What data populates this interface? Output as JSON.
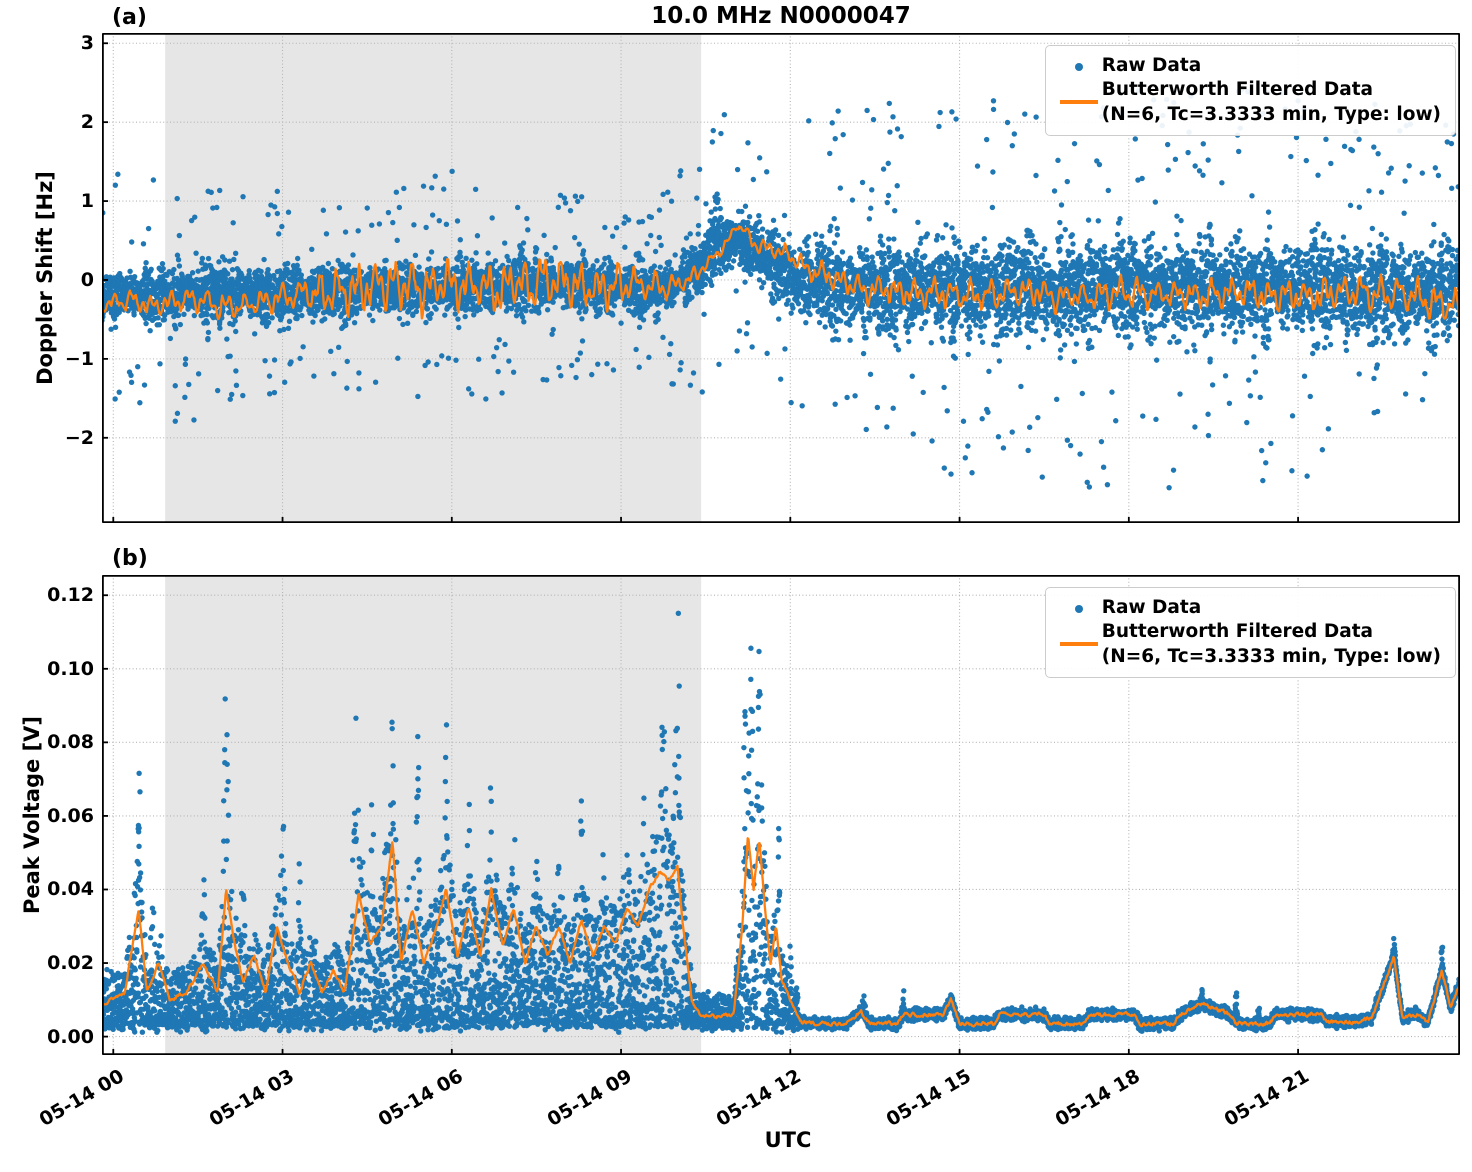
{
  "figure": {
    "title": "10.0 MHz N0000047",
    "panel_a_label": "(a)",
    "panel_b_label": "(b)",
    "xlabel": "UTC"
  },
  "legend": {
    "raw_label": "Raw Data",
    "filtered_label_line1": "Butterworth Filtered Data",
    "filtered_label_line2": "(N=6, Tc=3.3333 min, Type: low)"
  },
  "colors": {
    "raw": "#1f77b4",
    "filtered": "#ff7f0e",
    "shading": "#e6e6e6",
    "grid": "#b3b3b3",
    "spine": "#000000"
  },
  "chart_data": [
    {
      "type": "scatter",
      "panel": "a",
      "title": "10.0 MHz N0000047",
      "ylabel": "Doppler Shift [Hz]",
      "xlabel": "",
      "ylim": [
        -3.08,
        3.13
      ],
      "yticks": [
        3,
        2,
        1,
        0,
        -1,
        -2
      ],
      "ytick_labels": [
        "3",
        "2",
        "1",
        "0",
        "−1",
        "−2"
      ],
      "xlim_hours": [
        -0.2,
        23.87
      ],
      "xtick_hours": [
        0,
        3,
        6,
        9,
        12,
        15,
        18,
        21
      ],
      "xtick_labels": [
        "05-14 00",
        "05-14 03",
        "05-14 06",
        "05-14 09",
        "05-14 12",
        "05-14 15",
        "05-14 18",
        "05-14 21"
      ],
      "grid": true,
      "legend_position": "upper right",
      "shaded_region_hours": [
        0.92,
        10.42
      ],
      "series": [
        {
          "name": "Raw Data",
          "kind": "scatter",
          "n_points": 9500,
          "outlier_fraction": 0.05,
          "envelope_keyframes": [
            [
              -0.2,
              -0.2,
              0.52,
              1.6
            ],
            [
              1.0,
              -0.2,
              0.56,
              1.7
            ],
            [
              2.0,
              -0.15,
              0.6,
              1.5
            ],
            [
              3.0,
              -0.2,
              0.56,
              1.3
            ],
            [
              4.0,
              -0.15,
              0.55,
              1.3
            ],
            [
              5.0,
              -0.1,
              0.55,
              1.4
            ],
            [
              6.0,
              -0.1,
              0.55,
              1.5
            ],
            [
              7.0,
              -0.05,
              0.55,
              1.4
            ],
            [
              8.0,
              -0.05,
              0.5,
              1.2
            ],
            [
              9.0,
              -0.1,
              0.5,
              1.2
            ],
            [
              9.9,
              -0.1,
              0.5,
              1.3
            ],
            [
              10.35,
              0.2,
              0.7,
              1.7
            ],
            [
              10.7,
              0.45,
              0.75,
              1.7
            ],
            [
              11.1,
              0.5,
              0.7,
              1.6
            ],
            [
              11.4,
              0.35,
              0.6,
              1.3
            ],
            [
              11.7,
              0.2,
              0.7,
              1.5
            ],
            [
              12.1,
              0.0,
              0.85,
              2.1
            ],
            [
              13.0,
              -0.1,
              0.95,
              2.3
            ],
            [
              16.0,
              -0.1,
              1.0,
              2.5
            ],
            [
              20.0,
              -0.1,
              1.0,
              2.6
            ],
            [
              23.9,
              -0.15,
              1.0,
              2.3
            ]
          ]
        },
        {
          "name": "Butterworth Filtered Data (N=6, Tc=3.3333 min, Type: low)",
          "kind": "line",
          "filter": {
            "N": 6,
            "Tc_min": 3.3333,
            "type": "low"
          },
          "mean_keyframes": [
            [
              -0.2,
              -0.3
            ],
            [
              0.3,
              -0.25
            ],
            [
              0.8,
              -0.35
            ],
            [
              1.2,
              -0.25
            ],
            [
              1.8,
              -0.3
            ],
            [
              2.2,
              -0.35
            ],
            [
              2.6,
              -0.3
            ],
            [
              3.2,
              -0.2
            ],
            [
              3.8,
              -0.15
            ],
            [
              4.4,
              -0.1
            ],
            [
              5.0,
              -0.05
            ],
            [
              5.6,
              -0.1
            ],
            [
              6.2,
              -0.05
            ],
            [
              6.8,
              -0.1
            ],
            [
              7.4,
              -0.05
            ],
            [
              8.0,
              -0.05
            ],
            [
              8.6,
              -0.1
            ],
            [
              9.2,
              -0.05
            ],
            [
              9.8,
              -0.1
            ],
            [
              10.2,
              0.0
            ],
            [
              10.6,
              0.25
            ],
            [
              10.9,
              0.5
            ],
            [
              11.05,
              0.72
            ],
            [
              11.2,
              0.6
            ],
            [
              11.35,
              0.45
            ],
            [
              11.6,
              0.4
            ],
            [
              11.9,
              0.35
            ],
            [
              12.1,
              0.25
            ],
            [
              12.4,
              0.1
            ],
            [
              12.8,
              0.0
            ],
            [
              13.2,
              -0.1
            ],
            [
              14.0,
              -0.15
            ],
            [
              15.0,
              -0.2
            ],
            [
              16.0,
              -0.15
            ],
            [
              17.0,
              -0.2
            ],
            [
              18.0,
              -0.15
            ],
            [
              19.0,
              -0.2
            ],
            [
              20.0,
              -0.15
            ],
            [
              21.0,
              -0.2
            ],
            [
              22.0,
              -0.15
            ],
            [
              23.0,
              -0.2
            ],
            [
              23.9,
              -0.35
            ]
          ],
          "osc_amp_keyframes": [
            [
              -0.2,
              0.12
            ],
            [
              2.0,
              0.15
            ],
            [
              3.0,
              0.18
            ],
            [
              4.0,
              0.3
            ],
            [
              5.0,
              0.33
            ],
            [
              6.0,
              0.3
            ],
            [
              7.0,
              0.33
            ],
            [
              8.0,
              0.3
            ],
            [
              9.0,
              0.25
            ],
            [
              9.8,
              0.15
            ],
            [
              10.3,
              0.1
            ],
            [
              11.0,
              0.07
            ],
            [
              12.0,
              0.12
            ],
            [
              13.0,
              0.18
            ],
            [
              16.0,
              0.18
            ],
            [
              20.0,
              0.2
            ],
            [
              23.9,
              0.22
            ]
          ],
          "osc_period_hours": 0.33
        }
      ]
    },
    {
      "type": "scatter",
      "panel": "b",
      "ylabel": "Peak Voltage [V]",
      "xlabel": "UTC",
      "ylim": [
        -0.005,
        0.1255
      ],
      "yticks": [
        0.12,
        0.1,
        0.08,
        0.06,
        0.04,
        0.02,
        0.0
      ],
      "ytick_labels": [
        "0.12",
        "0.10",
        "0.08",
        "0.06",
        "0.04",
        "0.02",
        "0.00"
      ],
      "xlim_hours": [
        -0.2,
        23.87
      ],
      "xtick_hours": [
        0,
        3,
        6,
        9,
        12,
        15,
        18,
        21
      ],
      "xtick_labels": [
        "05-14 00",
        "05-14 03",
        "05-14 06",
        "05-14 09",
        "05-14 12",
        "05-14 15",
        "05-14 18",
        "05-14 21"
      ],
      "grid": true,
      "legend_position": "upper right",
      "shaded_region_hours": [
        0.92,
        10.42
      ],
      "series": [
        {
          "name": "Raw Data",
          "kind": "scatter",
          "n_points": 9000,
          "low_edge_pre_noon": 0.003,
          "low_edge_post_noon": 0.0025,
          "transition_hour": 12.15,
          "spikes": [
            [
              0.45,
              0.06,
              0.078
            ],
            [
              0.7,
              0.05,
              0.05
            ],
            [
              1.6,
              0.05,
              0.048
            ],
            [
              2.0,
              0.06,
              0.107
            ],
            [
              2.3,
              0.05,
              0.05
            ],
            [
              3.0,
              0.06,
              0.07
            ],
            [
              3.3,
              0.04,
              0.05
            ],
            [
              4.3,
              0.07,
              0.098
            ],
            [
              4.6,
              0.05,
              0.082
            ],
            [
              4.95,
              0.06,
              0.09
            ],
            [
              5.4,
              0.06,
              0.089
            ],
            [
              5.9,
              0.06,
              0.088
            ],
            [
              6.3,
              0.05,
              0.07
            ],
            [
              6.7,
              0.06,
              0.075
            ],
            [
              7.1,
              0.05,
              0.065
            ],
            [
              7.5,
              0.05,
              0.06
            ],
            [
              7.9,
              0.05,
              0.058
            ],
            [
              8.3,
              0.05,
              0.065
            ],
            [
              8.7,
              0.05,
              0.06
            ],
            [
              9.1,
              0.05,
              0.065
            ],
            [
              9.4,
              0.05,
              0.07
            ],
            [
              9.75,
              0.08,
              0.095
            ],
            [
              10.0,
              0.07,
              0.12
            ],
            [
              11.2,
              0.05,
              0.1
            ],
            [
              11.3,
              0.06,
              0.115
            ],
            [
              11.45,
              0.06,
              0.112
            ],
            [
              11.8,
              0.04,
              0.065
            ],
            [
              12.0,
              0.03,
              0.03
            ],
            [
              13.3,
              0.04,
              0.013
            ],
            [
              14.0,
              0.04,
              0.012
            ],
            [
              14.85,
              0.04,
              0.012
            ],
            [
              19.3,
              0.05,
              0.013
            ],
            [
              19.9,
              0.03,
              0.012
            ],
            [
              20.3,
              0.03,
              0.011
            ],
            [
              22.7,
              0.05,
              0.028
            ],
            [
              23.55,
              0.05,
              0.025
            ],
            [
              23.9,
              0.06,
              0.022
            ]
          ]
        },
        {
          "name": "Butterworth Filtered Data (N=6, Tc=3.3333 min, Type: low)",
          "kind": "line",
          "filter": {
            "N": 6,
            "Tc_min": 3.3333,
            "type": "low"
          },
          "keyframes": [
            [
              -0.2,
              0.009
            ],
            [
              0.2,
              0.012
            ],
            [
              0.45,
              0.035
            ],
            [
              0.6,
              0.012
            ],
            [
              0.8,
              0.02
            ],
            [
              1.0,
              0.01
            ],
            [
              1.3,
              0.012
            ],
            [
              1.6,
              0.02
            ],
            [
              1.85,
              0.012
            ],
            [
              2.0,
              0.04
            ],
            [
              2.15,
              0.025
            ],
            [
              2.3,
              0.015
            ],
            [
              2.5,
              0.022
            ],
            [
              2.7,
              0.012
            ],
            [
              2.9,
              0.03
            ],
            [
              3.1,
              0.02
            ],
            [
              3.3,
              0.012
            ],
            [
              3.5,
              0.02
            ],
            [
              3.7,
              0.012
            ],
            [
              3.9,
              0.018
            ],
            [
              4.1,
              0.012
            ],
            [
              4.35,
              0.039
            ],
            [
              4.55,
              0.025
            ],
            [
              4.75,
              0.03
            ],
            [
              4.95,
              0.053
            ],
            [
              5.1,
              0.02
            ],
            [
              5.3,
              0.035
            ],
            [
              5.5,
              0.02
            ],
            [
              5.7,
              0.028
            ],
            [
              5.9,
              0.04
            ],
            [
              6.1,
              0.022
            ],
            [
              6.3,
              0.035
            ],
            [
              6.5,
              0.022
            ],
            [
              6.7,
              0.04
            ],
            [
              6.9,
              0.025
            ],
            [
              7.1,
              0.035
            ],
            [
              7.3,
              0.02
            ],
            [
              7.5,
              0.03
            ],
            [
              7.7,
              0.022
            ],
            [
              7.9,
              0.03
            ],
            [
              8.1,
              0.02
            ],
            [
              8.3,
              0.032
            ],
            [
              8.5,
              0.022
            ],
            [
              8.7,
              0.03
            ],
            [
              8.9,
              0.025
            ],
            [
              9.1,
              0.035
            ],
            [
              9.3,
              0.03
            ],
            [
              9.5,
              0.04
            ],
            [
              9.7,
              0.045
            ],
            [
              9.85,
              0.042
            ],
            [
              10.0,
              0.046
            ],
            [
              10.1,
              0.03
            ],
            [
              10.25,
              0.01
            ],
            [
              10.4,
              0.006
            ],
            [
              10.7,
              0.0055
            ],
            [
              11.0,
              0.006
            ],
            [
              11.15,
              0.03
            ],
            [
              11.25,
              0.055
            ],
            [
              11.35,
              0.04
            ],
            [
              11.45,
              0.054
            ],
            [
              11.55,
              0.035
            ],
            [
              11.65,
              0.02
            ],
            [
              11.75,
              0.03
            ],
            [
              11.85,
              0.015
            ],
            [
              11.95,
              0.012
            ],
            [
              12.05,
              0.008
            ],
            [
              12.2,
              0.004
            ],
            [
              12.5,
              0.0035
            ],
            [
              13.0,
              0.0035
            ],
            [
              13.25,
              0.007
            ],
            [
              13.4,
              0.0035
            ],
            [
              13.9,
              0.0035
            ],
            [
              14.0,
              0.006
            ],
            [
              14.7,
              0.006
            ],
            [
              14.85,
              0.01
            ],
            [
              15.0,
              0.0035
            ],
            [
              15.6,
              0.0035
            ],
            [
              15.7,
              0.006
            ],
            [
              16.5,
              0.006
            ],
            [
              16.6,
              0.0035
            ],
            [
              17.2,
              0.0035
            ],
            [
              17.3,
              0.006
            ],
            [
              18.1,
              0.006
            ],
            [
              18.2,
              0.0035
            ],
            [
              18.8,
              0.0035
            ],
            [
              18.9,
              0.006
            ],
            [
              19.3,
              0.009
            ],
            [
              19.8,
              0.006
            ],
            [
              19.9,
              0.0035
            ],
            [
              20.5,
              0.0035
            ],
            [
              20.6,
              0.006
            ],
            [
              21.4,
              0.006
            ],
            [
              21.5,
              0.004
            ],
            [
              22.0,
              0.004
            ],
            [
              22.3,
              0.005
            ],
            [
              22.7,
              0.022
            ],
            [
              22.85,
              0.005
            ],
            [
              23.1,
              0.006
            ],
            [
              23.3,
              0.004
            ],
            [
              23.55,
              0.018
            ],
            [
              23.7,
              0.008
            ],
            [
              23.9,
              0.016
            ]
          ]
        }
      ]
    }
  ]
}
